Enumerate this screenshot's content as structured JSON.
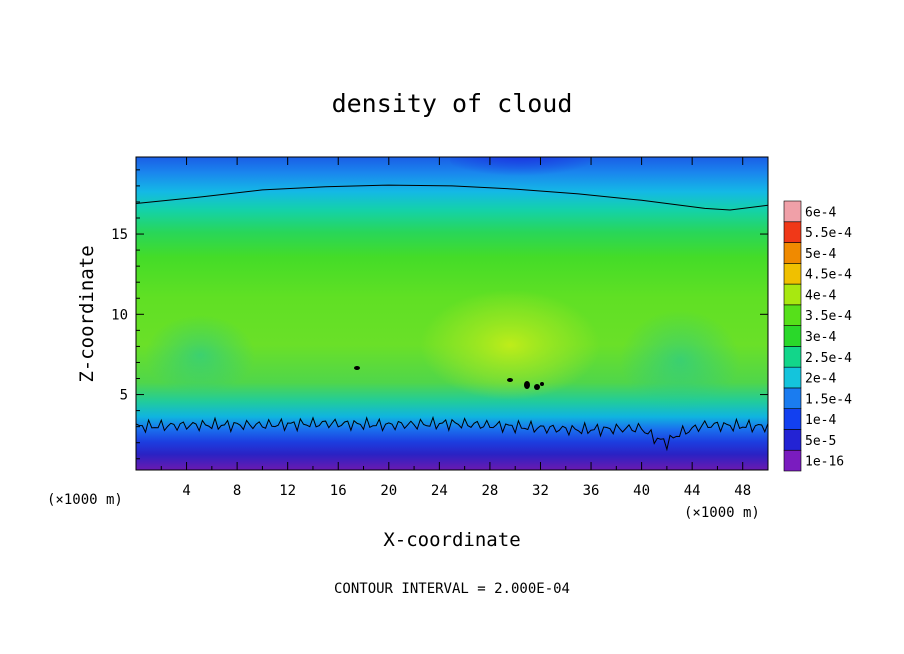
{
  "chart_data": {
    "type": "heatmap",
    "title": "density of cloud",
    "xlabel": "X-coordinate",
    "ylabel": "Z-coordinate",
    "x_unit_left": "(×1000 m)",
    "x_unit_right": "(×1000 m)",
    "xlim": [
      0,
      50
    ],
    "ylim": [
      0.3,
      19.8
    ],
    "x_ticks": [
      4,
      8,
      12,
      16,
      20,
      24,
      28,
      32,
      36,
      40,
      44,
      48
    ],
    "x_tick_labels": [
      "4",
      "8",
      "12",
      "16",
      "20",
      "24",
      "28",
      "32",
      "36",
      "40",
      "44",
      "48"
    ],
    "y_ticks": [
      5,
      10,
      15
    ],
    "y_tick_labels": [
      "5",
      "10",
      "15"
    ],
    "grid": false,
    "footer": "CONTOUR INTERVAL = 2.000E-04",
    "colorbar": {
      "labels": [
        "1e-16",
        "5e-5",
        "1e-4",
        "1.5e-4",
        "2e-4",
        "2.5e-4",
        "3e-4",
        "3.5e-4",
        "4e-4",
        "4.5e-4",
        "5e-4",
        "5.5e-4",
        "6e-4"
      ],
      "colors": [
        "#7a1cbf",
        "#2323d4",
        "#1240f0",
        "#1a7cf0",
        "#14c4dc",
        "#12d68a",
        "#2ad82a",
        "#56e01a",
        "#a8e810",
        "#f0c000",
        "#f08a00",
        "#f03818",
        "#f0a0a8"
      ]
    },
    "contour_2e-4_upper": {
      "x": [
        0,
        5,
        10,
        15,
        20,
        25,
        30,
        35,
        40,
        45,
        47,
        50
      ],
      "z": [
        16.9,
        17.3,
        17.75,
        17.95,
        18.05,
        18.0,
        17.8,
        17.5,
        17.1,
        16.6,
        16.5,
        16.8
      ]
    },
    "contour_2e-4_lower": {
      "x": [
        0,
        5,
        10,
        15,
        20,
        25,
        30,
        35,
        40,
        41,
        42,
        43,
        45,
        50
      ],
      "z": [
        3.0,
        3.1,
        3.1,
        3.2,
        3.1,
        3.2,
        3.0,
        2.8,
        2.9,
        2.3,
        2.0,
        2.6,
        3.1,
        3.0
      ]
    }
  }
}
